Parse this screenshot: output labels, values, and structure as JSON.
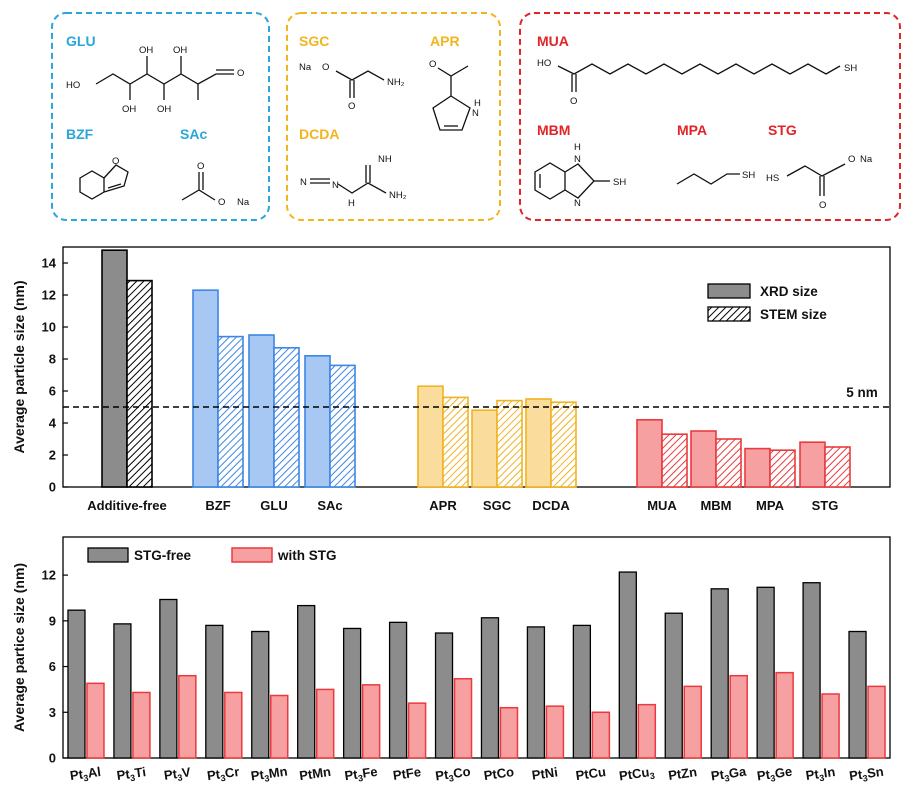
{
  "panel_a": {
    "groups": [
      {
        "molecules": [
          {
            "name": "GLU",
            "atoms": [
              "HO",
              "OH",
              "OH",
              "O",
              "OH",
              "OH"
            ]
          },
          {
            "name": "BZF",
            "atoms": [
              "O"
            ]
          },
          {
            "name": "SAc",
            "atoms": [
              "O",
              "O",
              "Na"
            ]
          }
        ]
      },
      {
        "molecules": [
          {
            "name": "SGC",
            "atoms": [
              "Na",
              "O",
              "O",
              "NH₂"
            ]
          },
          {
            "name": "APR",
            "atoms": [
              "O",
              "H",
              "N"
            ]
          },
          {
            "name": "DCDA",
            "atoms": [
              "NH",
              "N",
              "N",
              "H",
              "NH₂"
            ]
          }
        ]
      },
      {
        "molecules": [
          {
            "name": "MUA",
            "atoms": [
              "HO",
              "O",
              "SH"
            ]
          },
          {
            "name": "MBM",
            "atoms": [
              "H",
              "N",
              "N",
              "SH"
            ]
          },
          {
            "name": "MPA",
            "atoms": [
              "SH"
            ]
          },
          {
            "name": "STG",
            "atoms": [
              "HS",
              "O",
              "Na",
              "O"
            ]
          }
        ]
      }
    ],
    "colors": {
      "blue": "#29a6dc",
      "yellow": "#f2b51c",
      "red": "#e02428"
    }
  },
  "chart_data": [
    {
      "type": "bar",
      "ylabel": "Average particle size (nm)",
      "ylim": [
        0,
        15
      ],
      "yticks": [
        0,
        2,
        4,
        6,
        8,
        10,
        12,
        14
      ],
      "categories": [
        "Additive-free",
        "BZF",
        "GLU",
        "SAc",
        "APR",
        "SGC",
        "DCDA",
        "MUA",
        "MBM",
        "MPA",
        "STG"
      ],
      "category_groups": [
        "none",
        "blue",
        "blue",
        "blue",
        "yellow",
        "yellow",
        "yellow",
        "red",
        "red",
        "red",
        "red"
      ],
      "series": [
        {
          "name": "XRD size",
          "values": [
            14.8,
            12.3,
            9.5,
            8.2,
            6.3,
            4.8,
            5.5,
            4.2,
            3.5,
            2.4,
            2.8
          ]
        },
        {
          "name": "STEM size",
          "values": [
            12.9,
            9.4,
            8.7,
            7.6,
            5.6,
            5.4,
            5.3,
            3.3,
            3.0,
            2.3,
            2.5
          ]
        }
      ],
      "reference_line": {
        "value": 5,
        "label": "5 nm"
      },
      "legend_position": "top-right"
    },
    {
      "type": "bar",
      "ylabel": "Average partice size (nm)",
      "ylim": [
        0,
        14.5
      ],
      "yticks": [
        0,
        3,
        6,
        9,
        12
      ],
      "categories": [
        {
          "base": "Pt",
          "sub1": "3",
          "el": "Al"
        },
        {
          "base": "Pt",
          "sub1": "3",
          "el": "Ti"
        },
        {
          "base": "Pt",
          "sub1": "3",
          "el": "V"
        },
        {
          "base": "Pt",
          "sub1": "3",
          "el": "Cr"
        },
        {
          "base": "Pt",
          "sub1": "3",
          "el": "Mn"
        },
        {
          "base": "Pt",
          "sub1": "",
          "el": "Mn"
        },
        {
          "base": "Pt",
          "sub1": "3",
          "el": "Fe"
        },
        {
          "base": "Pt",
          "sub1": "",
          "el": "Fe"
        },
        {
          "base": "Pt",
          "sub1": "3",
          "el": "Co"
        },
        {
          "base": "Pt",
          "sub1": "",
          "el": "Co"
        },
        {
          "base": "Pt",
          "sub1": "",
          "el": "Ni"
        },
        {
          "base": "Pt",
          "sub1": "",
          "el": "Cu"
        },
        {
          "base": "Pt",
          "sub1": "",
          "el": "Cu",
          "sub2": "3"
        },
        {
          "base": "Pt",
          "sub1": "",
          "el": "Zn"
        },
        {
          "base": "Pt",
          "sub1": "3",
          "el": "Ga"
        },
        {
          "base": "Pt",
          "sub1": "3",
          "el": "Ge"
        },
        {
          "base": "Pt",
          "sub1": "3",
          "el": "In"
        },
        {
          "base": "Pt",
          "sub1": "3",
          "el": "Sn"
        }
      ],
      "series": [
        {
          "name": "STG-free",
          "values": [
            9.7,
            8.8,
            10.4,
            8.7,
            8.3,
            10.0,
            8.5,
            8.9,
            8.2,
            9.2,
            8.6,
            8.7,
            12.2,
            9.5,
            11.1,
            11.2,
            11.5,
            8.3
          ]
        },
        {
          "name": "with STG",
          "values": [
            4.9,
            4.3,
            5.4,
            4.3,
            4.1,
            4.5,
            4.8,
            3.6,
            5.2,
            3.3,
            3.4,
            3.0,
            3.5,
            4.7,
            5.4,
            5.6,
            4.2,
            4.7
          ]
        }
      ],
      "legend_position": "top-left"
    }
  ]
}
